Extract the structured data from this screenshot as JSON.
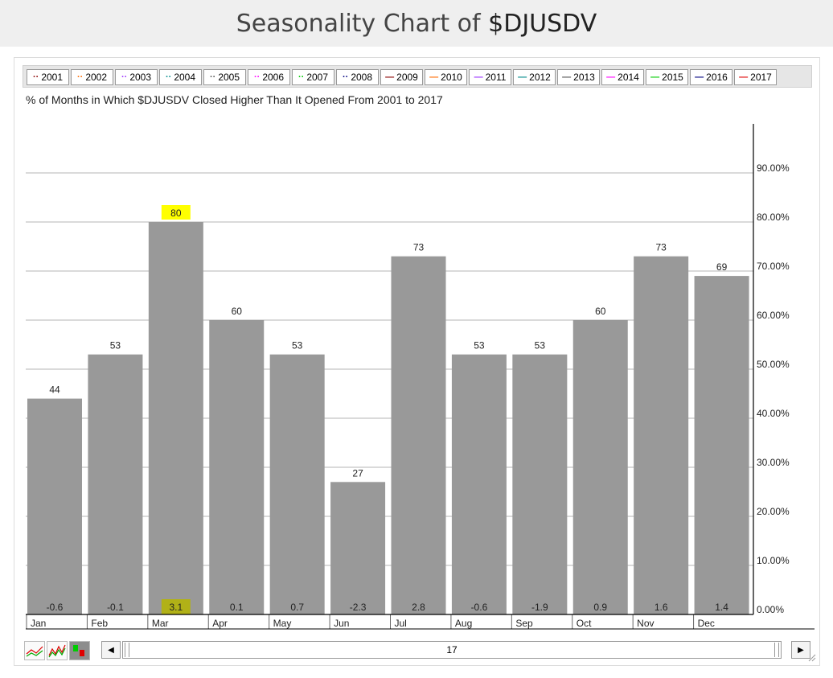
{
  "page": {
    "title_prefix": "Seasonality Chart of ",
    "title_ticker": "$DJUSDV"
  },
  "legend": {
    "items": [
      {
        "label": "2001",
        "style": "dotted",
        "color": "#8b0000"
      },
      {
        "label": "2002",
        "style": "dotted",
        "color": "#ff6a00"
      },
      {
        "label": "2003",
        "style": "dotted",
        "color": "#9b30ff"
      },
      {
        "label": "2004",
        "style": "dotted",
        "color": "#008b8b"
      },
      {
        "label": "2005",
        "style": "dotted",
        "color": "#555555"
      },
      {
        "label": "2006",
        "style": "dotted",
        "color": "#ff00ff"
      },
      {
        "label": "2007",
        "style": "dotted",
        "color": "#00cc00"
      },
      {
        "label": "2008",
        "style": "dotted",
        "color": "#000080"
      },
      {
        "label": "2009",
        "style": "solid",
        "color": "#8b0000"
      },
      {
        "label": "2010",
        "style": "solid",
        "color": "#ff6a00"
      },
      {
        "label": "2011",
        "style": "solid",
        "color": "#9b30ff"
      },
      {
        "label": "2012",
        "style": "solid",
        "color": "#008b8b"
      },
      {
        "label": "2013",
        "style": "solid",
        "color": "#555555"
      },
      {
        "label": "2014",
        "style": "solid",
        "color": "#ff00ff"
      },
      {
        "label": "2015",
        "style": "solid",
        "color": "#00cc00"
      },
      {
        "label": "2016",
        "style": "solid",
        "color": "#000080"
      },
      {
        "label": "2017",
        "style": "solid",
        "color": "#e00000"
      }
    ]
  },
  "chart_data": {
    "type": "bar",
    "title": "% of Months in Which $DJUSDV Closed Higher Than It Opened From 2001 to 2017",
    "categories": [
      "Jan",
      "Feb",
      "Mar",
      "Apr",
      "May",
      "Jun",
      "Jul",
      "Aug",
      "Sep",
      "Oct",
      "Nov",
      "Dec"
    ],
    "values": [
      44,
      53,
      80,
      60,
      53,
      27,
      73,
      53,
      53,
      60,
      73,
      69
    ],
    "value_labels": [
      "44",
      "53",
      "80",
      "60",
      "53",
      "27",
      "73",
      "53",
      "53",
      "60",
      "73",
      "69"
    ],
    "avg_change": [
      "-0.6",
      "-0.1",
      "3.1",
      "0.1",
      "0.7",
      "-2.3",
      "2.8",
      "-0.6",
      "-1.9",
      "0.9",
      "1.6",
      "1.4"
    ],
    "highlight_category": "Mar",
    "highlight_color": "#ffff00",
    "bar_color": "#999999",
    "ylim": [
      0,
      100
    ],
    "yticks": [
      "0.00%",
      "10.00%",
      "20.00%",
      "30.00%",
      "40.00%",
      "50.00%",
      "60.00%",
      "70.00%",
      "80.00%",
      "90.00%"
    ],
    "ytick_values": [
      0,
      10,
      20,
      30,
      40,
      50,
      60,
      70,
      80,
      90
    ],
    "y_axis_side": "right",
    "grid": true,
    "legend_placement": "top"
  },
  "controls": {
    "scroll_value": "17",
    "scroll_left_icon": "left-arrow-icon",
    "scroll_right_icon": "right-arrow-icon",
    "chart_type_icons": [
      "line-chart-icon",
      "performance-chart-icon",
      "bar-chart-icon"
    ]
  }
}
